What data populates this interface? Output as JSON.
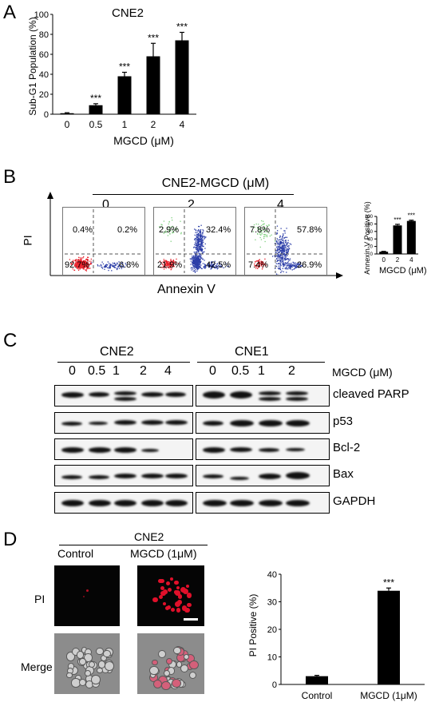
{
  "panel_labels": {
    "a": "A",
    "b": "B",
    "c": "C",
    "d": "D"
  },
  "panelA": {
    "title": "CNE2",
    "ylabel": "Sub-G1 Population (%)",
    "xlabel": "MGCD (μM)",
    "ytick_labels": [
      "0",
      "20",
      "40",
      "60",
      "80",
      "100"
    ],
    "categories": [
      "0",
      "0.5",
      "1",
      "2",
      "4"
    ],
    "significance": [
      "",
      "***",
      "***",
      "***",
      "***"
    ]
  },
  "panelB": {
    "header": "CNE2-MGCD (μM)",
    "doses": [
      "0",
      "2",
      "4"
    ],
    "yaxis": "PI",
    "xaxis": "Annexin V",
    "quadrants": [
      {
        "ul": "0.4%",
        "ur": "0.2%",
        "ll": "92.7%",
        "lr": "6.8%"
      },
      {
        "ul": "2.9%",
        "ur": "32.4%",
        "ll": "21.9%",
        "lr": "42.5%"
      },
      {
        "ul": "7.8%",
        "ur": "57.8%",
        "ll": "7.4%",
        "lr": "26.9%"
      }
    ],
    "inset": {
      "ylabel": "Annexin V Positive (%)",
      "xlabel": "MGCD (μM)",
      "ytick_labels": [
        "0",
        "10",
        "20",
        "30",
        "40",
        "50",
        "60",
        "70",
        "80",
        "90",
        "100"
      ],
      "categories": [
        "0",
        "2",
        "4"
      ],
      "significance": [
        "",
        "***",
        "***"
      ]
    }
  },
  "panelC": {
    "left_title": "CNE2",
    "right_title": "CNE1",
    "left_doses": [
      "0",
      "0.5",
      "1",
      "2",
      "4"
    ],
    "right_doses": [
      "0",
      "0.5",
      "1",
      "2"
    ],
    "dose_unit": "MGCD (μM)",
    "proteins": [
      "cleaved PARP",
      "p53",
      "Bcl-2",
      "Bax",
      "GAPDH"
    ]
  },
  "panelD": {
    "group_title": "CNE2",
    "col_labels": [
      "Control",
      "MGCD (1μM)"
    ],
    "row_labels": [
      "PI",
      "Merge"
    ],
    "chart": {
      "ylabel": "PI Positive (%)",
      "ytick_labels": [
        "0",
        "10",
        "20",
        "30",
        "40"
      ],
      "categories": [
        "Control",
        "MGCD (1μM)"
      ],
      "significance": [
        "",
        "***"
      ]
    }
  },
  "chart_data": [
    {
      "type": "bar",
      "title": "CNE2",
      "categories": [
        "0",
        "0.5",
        "1",
        "2",
        "4"
      ],
      "values": [
        1,
        9,
        38,
        58,
        74
      ],
      "errors": [
        0.5,
        1.5,
        4,
        13,
        8
      ],
      "ylabel": "Sub-G1 Population (%)",
      "xlabel": "MGCD (μM)",
      "ylim": [
        0,
        100
      ],
      "color": "#000000"
    },
    {
      "type": "bar",
      "categories": [
        "0",
        "2",
        "4"
      ],
      "values": [
        6,
        76,
        88
      ],
      "errors": [
        1,
        3,
        2
      ],
      "ylabel": "Annexin V Positive (%)",
      "xlabel": "MGCD (μM)",
      "ylim": [
        0,
        100
      ],
      "color": "#000000"
    },
    {
      "type": "bar",
      "categories": [
        "Control",
        "MGCD (1μM)"
      ],
      "values": [
        3,
        34
      ],
      "errors": [
        0.3,
        1
      ],
      "ylabel": "PI Positive (%)",
      "ylim": [
        0,
        40
      ],
      "color": "#000000"
    }
  ]
}
